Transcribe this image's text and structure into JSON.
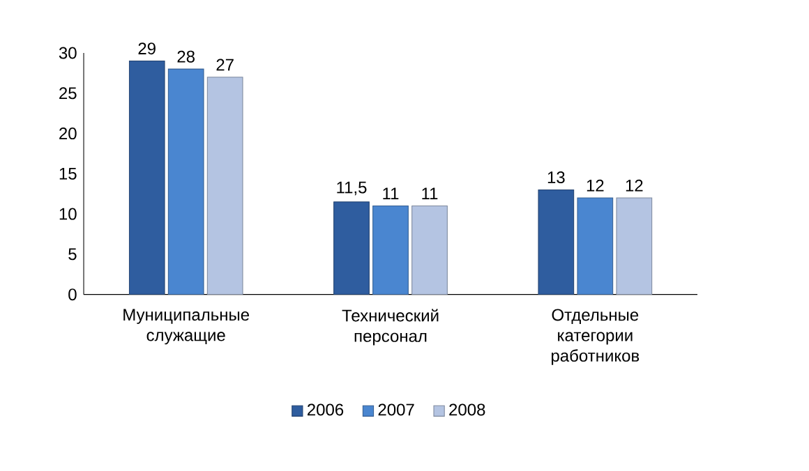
{
  "chart_data": {
    "type": "bar",
    "categories": [
      "Муниципальные служащие",
      "Технический персонал",
      "Отдельные категории работников"
    ],
    "series": [
      {
        "name": "2006",
        "color": "#2f5d9f",
        "values": [
          29,
          11.5,
          13
        ],
        "value_labels": [
          "29",
          "11,5",
          "13"
        ]
      },
      {
        "name": "2007",
        "color": "#4a86d0",
        "values": [
          28,
          11,
          12
        ],
        "value_labels": [
          "28",
          "11",
          "12"
        ]
      },
      {
        "name": "2008",
        "color": "#b4c4e2",
        "values": [
          27,
          11,
          12
        ],
        "value_labels": [
          "27",
          "11",
          "12"
        ]
      }
    ],
    "ylim": [
      0,
      30
    ],
    "yticks": [
      0,
      5,
      10,
      15,
      20,
      25,
      30
    ],
    "legend": "bottom",
    "grid": false
  }
}
